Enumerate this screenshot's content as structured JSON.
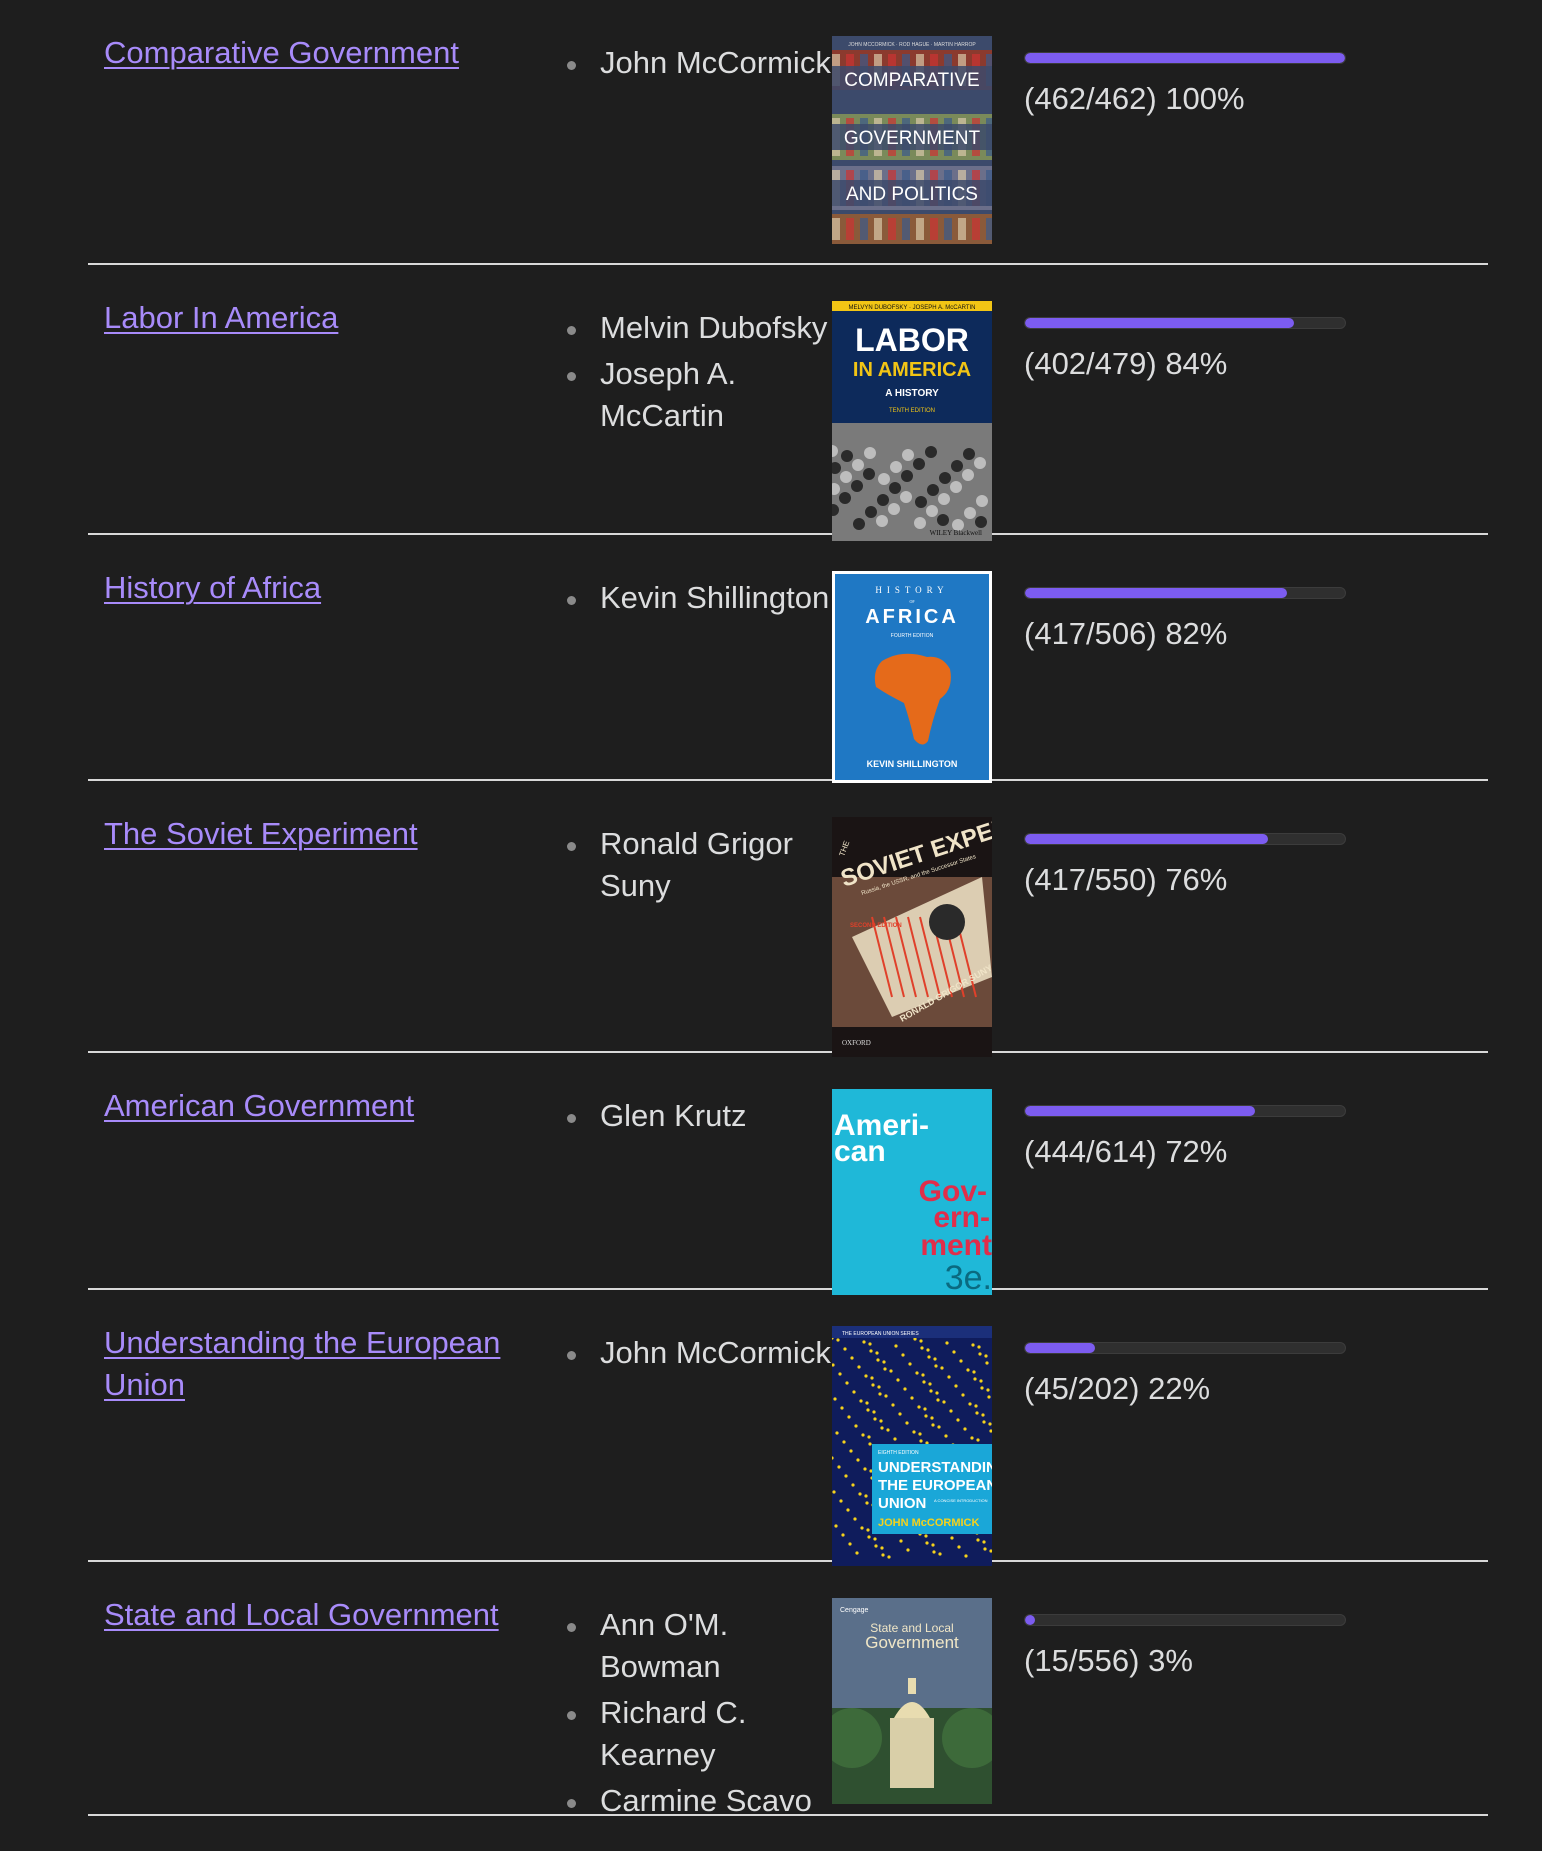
{
  "colors": {
    "background": "#1e1e1e",
    "link": "#a88bfa",
    "progress_fill": "#7c5cf0",
    "divider": "#d8d8d8"
  },
  "books": [
    {
      "title": "Comparative Government",
      "authors": [
        "John McCormick"
      ],
      "cover": {
        "lines": [
          "JOHN MCCORMICK · ROD HAGUE · MARTIN HARROP",
          "COMPARATIVE",
          "GOVERNMENT",
          "AND POLITICS"
        ],
        "colors": [
          "#3c4a6b",
          "#c73a2c",
          "#e9e1c8"
        ]
      },
      "progress": {
        "text": "(462/462) 100%",
        "fraction": 1.0
      }
    },
    {
      "title": "Labor In America",
      "authors": [
        "Melvin Dubofsky",
        "Joseph A. McCartin"
      ],
      "cover": {
        "lines": [
          "MELVYN DUBOFSKY · JOSEPH A. McCARTIN",
          "LABOR",
          "IN AMERICA",
          "A HISTORY",
          "TENTH EDITION",
          "WILEY Blackwell"
        ],
        "colors": [
          "#0d2a5b",
          "#f2c515",
          "#ffffff"
        ]
      },
      "progress": {
        "text": "(402/479) 84%",
        "fraction": 0.84
      }
    },
    {
      "title": "History of Africa",
      "authors": [
        "Kevin Shillington"
      ],
      "cover": {
        "lines": [
          "HISTORY",
          "OF",
          "AFRICA",
          "FOURTH EDITION",
          "KEVIN SHILLINGTON"
        ],
        "colors": [
          "#1f78c4",
          "#e56a1a",
          "#ffffff"
        ]
      },
      "progress": {
        "text": "(417/506) 82%",
        "fraction": 0.82
      }
    },
    {
      "title": "The Soviet Experiment",
      "authors": [
        "Ronald Grigor Suny"
      ],
      "cover": {
        "lines": [
          "THE",
          "SOVIET EXPERIMENT",
          "Russia, the USSR, and the Successor States",
          "SECOND EDITION",
          "RONALD GRIGOR SUNY",
          "OXFORD"
        ],
        "colors": [
          "#1a1414",
          "#e0402a",
          "#f0e4c8"
        ]
      },
      "progress": {
        "text": "(417/550) 76%",
        "fraction": 0.76
      }
    },
    {
      "title": "American Government",
      "authors": [
        "Glen Krutz"
      ],
      "cover": {
        "lines": [
          "Ameri-",
          "can",
          "Gov-",
          "ern-",
          "ment",
          "3e."
        ],
        "colors": [
          "#1fb8d8",
          "#e02e4a",
          "#ffffff"
        ]
      },
      "progress": {
        "text": "(444/614) 72%",
        "fraction": 0.72
      }
    },
    {
      "title": "Understanding the European Union",
      "authors": [
        "John McCormick"
      ],
      "cover": {
        "lines": [
          "THE EUROPEAN UNION SERIES",
          "EIGHTH EDITION",
          "UNDERSTANDING",
          "THE EUROPEAN",
          "UNION",
          "A CONCISE INTRODUCTION",
          "JOHN McCORMICK"
        ],
        "colors": [
          "#0f1c5c",
          "#f5d21c",
          "#1aa7d8"
        ]
      },
      "progress": {
        "text": "(45/202) 22%",
        "fraction": 0.22
      }
    },
    {
      "title": "State and Local Government",
      "authors": [
        "Ann O'M. Bowman",
        "Richard C. Kearney",
        "Carmine Scavo"
      ],
      "cover": {
        "lines": [
          "Cengage",
          "State and Local",
          "Government"
        ],
        "colors": [
          "#5a6f8a",
          "#2f5030",
          "#f1e7c7"
        ]
      },
      "progress": {
        "text": "(15/556) 3%",
        "fraction": 0.03
      }
    }
  ]
}
